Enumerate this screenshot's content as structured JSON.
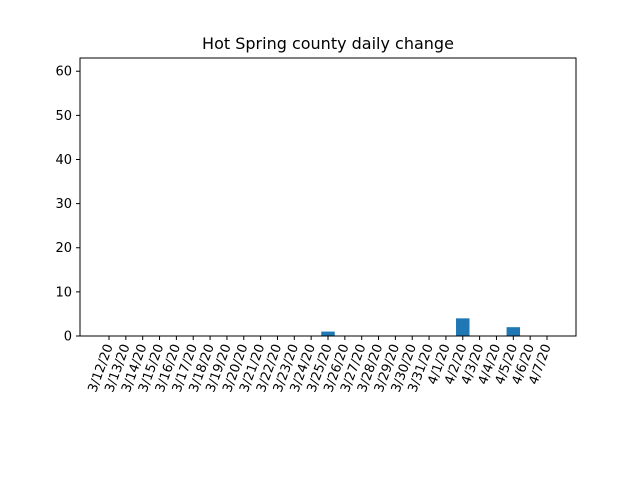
{
  "chart_data": {
    "type": "bar",
    "title": "Hot Spring county daily change",
    "xlabel": "",
    "ylabel": "",
    "categories": [
      "3/12/20",
      "3/13/20",
      "3/14/20",
      "3/15/20",
      "3/16/20",
      "3/17/20",
      "3/18/20",
      "3/19/20",
      "3/20/20",
      "3/21/20",
      "3/22/20",
      "3/23/20",
      "3/24/20",
      "3/25/20",
      "3/26/20",
      "3/27/20",
      "3/28/20",
      "3/29/20",
      "3/30/20",
      "3/31/20",
      "4/1/20",
      "4/2/20",
      "4/3/20",
      "4/4/20",
      "4/5/20",
      "4/6/20",
      "4/7/20"
    ],
    "values": [
      0,
      0,
      0,
      0,
      0,
      0,
      0,
      0,
      0,
      0,
      0,
      0,
      0,
      1,
      0,
      0,
      0,
      0,
      0,
      0,
      0,
      4,
      0,
      0,
      2,
      0,
      0
    ],
    "ylim": [
      0,
      63
    ],
    "yticks": [
      0,
      10,
      20,
      30,
      40,
      50,
      60
    ],
    "grid": false,
    "bar_color": "#1f77b4",
    "x_tick_rotation_deg": 70
  }
}
